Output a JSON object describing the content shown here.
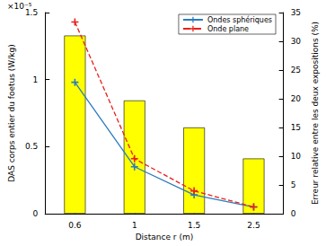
{
  "chart_data": {
    "type": "line",
    "x_label": "Distance r (m)",
    "y_label": "DAS corps entier du foetus (W/kg)",
    "y2_label": "Erreur relative entre les deux expositions (%)",
    "annotations": [
      "×10⁻⁵"
    ],
    "categories": [
      "0.6",
      "1",
      "1.5",
      "2.5"
    ],
    "series": [
      {
        "name": "Ondes sphériques",
        "type": "line",
        "color": "#2b7bbf",
        "marker": "plus",
        "line_style": "solid",
        "values": [
          0.98,
          0.35,
          0.14,
          0.05
        ]
      },
      {
        "name": "Onde plane",
        "type": "line",
        "color": "#e8201a",
        "marker": "plus",
        "line_style": "dashed",
        "values": [
          1.43,
          0.41,
          0.17,
          0.05
        ]
      },
      {
        "type": "bar",
        "color": "#ffff00",
        "axis": "y2",
        "values": [
          31,
          19.7,
          15,
          9.6
        ]
      }
    ],
    "ylim": [
      0,
      1.5
    ],
    "yticks": [
      0,
      0.5,
      1,
      1.5
    ],
    "y2lim": [
      0,
      35
    ],
    "y2ticks": [
      0,
      5,
      10,
      15,
      20,
      25,
      30,
      35
    ],
    "grid": false,
    "legend": "upper right"
  }
}
